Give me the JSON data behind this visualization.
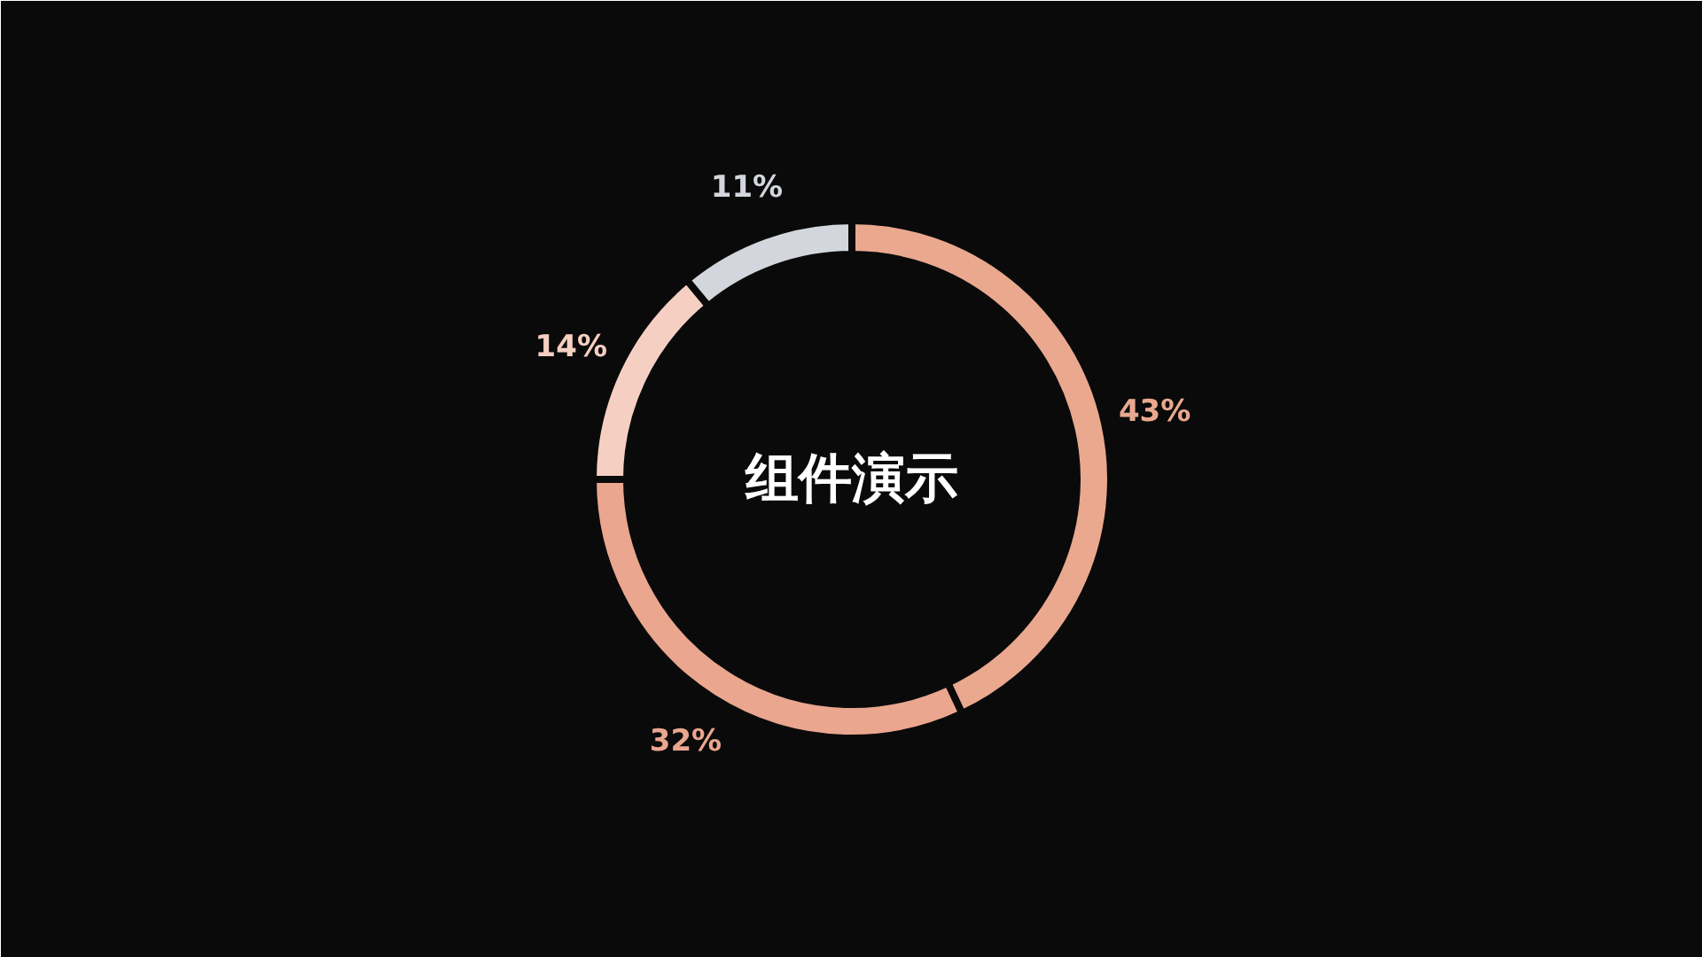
{
  "chart_data": {
    "type": "donut",
    "title": "组件演示",
    "categories": [
      null,
      null,
      null,
      null
    ],
    "values": [
      43,
      32,
      14,
      11
    ],
    "colors": [
      "#eaa88f",
      "#eaa68e",
      "#f6cfc3",
      "#d3d7dd"
    ],
    "value_labels": [
      "43%",
      "32%",
      "14%",
      "11%"
    ]
  }
}
